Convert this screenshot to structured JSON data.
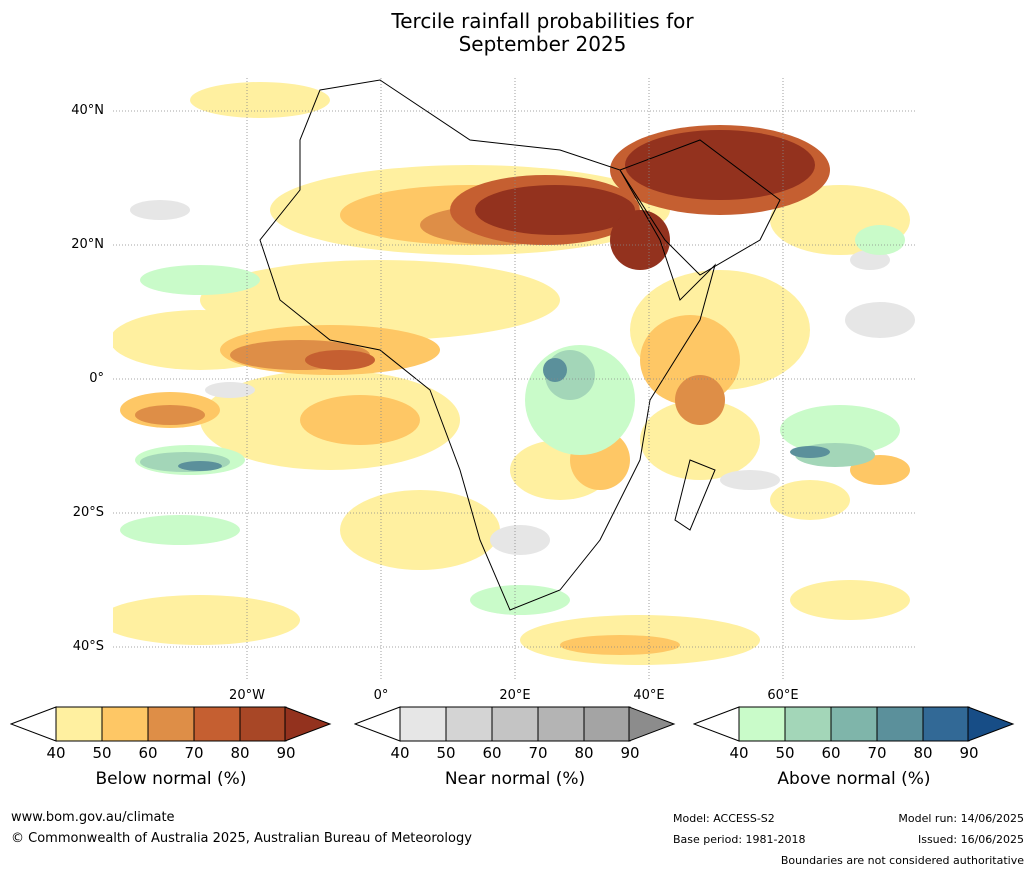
{
  "title_line1": "Tercile rainfall probabilities for",
  "title_line2": "September 2025",
  "lat_labels": [
    "40°N",
    "20°N",
    "0°",
    "20°S",
    "40°S"
  ],
  "lon_labels": [
    "20°W",
    "0°",
    "20°E",
    "40°E",
    "60°E"
  ],
  "colorbars": [
    {
      "label": "Below normal (%)",
      "ticks": [
        "40",
        "50",
        "60",
        "70",
        "80",
        "90"
      ],
      "colors": [
        "#fff0a0",
        "#fec765",
        "#de8e47",
        "#c55f31",
        "#a84726",
        "#93321e"
      ]
    },
    {
      "label": "Near normal (%)",
      "ticks": [
        "40",
        "50",
        "60",
        "70",
        "80",
        "90"
      ],
      "colors": [
        "#e6e6e6",
        "#d4d4d4",
        "#c4c4c4",
        "#b4b4b4",
        "#a4a4a4",
        "#8c8c8c"
      ]
    },
    {
      "label": "Above normal (%)",
      "ticks": [
        "40",
        "50",
        "60",
        "70",
        "80",
        "90"
      ],
      "colors": [
        "#c9fbc9",
        "#a3d6b8",
        "#7fb5aa",
        "#5b909b",
        "#326996",
        "#174d86"
      ]
    }
  ],
  "footer": {
    "website": "www.bom.gov.au/climate",
    "copyright": "© Commonwealth of Australia 2025, Australian Bureau of Meteorology",
    "model": "Model: ACCESS-S2",
    "base_period": "Base period: 1981-2018",
    "model_run": "Model run: 14/06/2025",
    "issued": "Issued: 16/06/2025",
    "disclaimer": "Boundaries are not considered authoritative"
  }
}
